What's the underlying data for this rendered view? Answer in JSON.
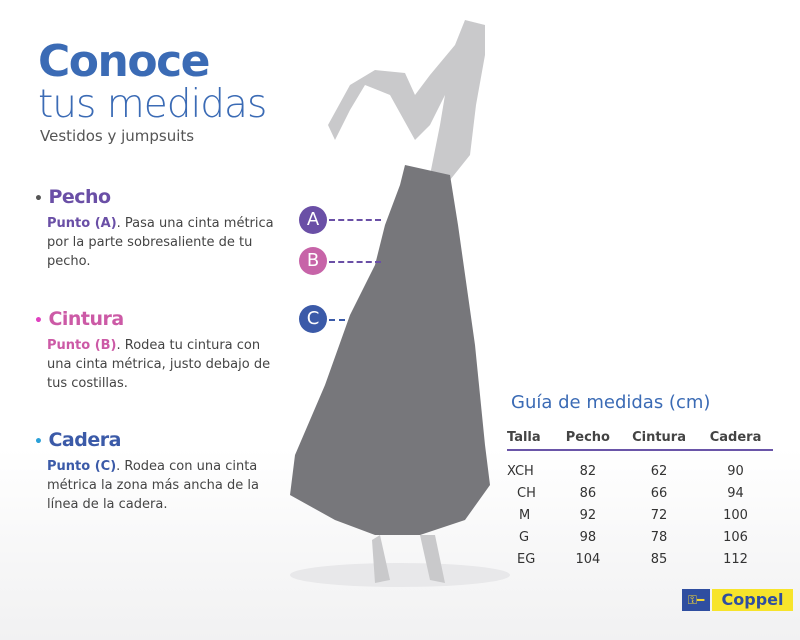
{
  "header": {
    "title_bold": "Conoce",
    "title_light": "tus medidas",
    "subtitle": "Vestidos y jumpsuits"
  },
  "sections": [
    {
      "heading": "Pecho",
      "point": "Punto (A)",
      "text": ". Pasa una cinta métrica por la parte sobresaliente de tu pecho.",
      "color": "#6a4fa6",
      "bullet_color": "#555"
    },
    {
      "heading": "Cintura",
      "point": "Punto (B)",
      "text": ". Rodea tu cintura con una cinta métrica, justo debajo de tus costillas.",
      "color": "#cc5aa6",
      "bullet_color": "#e040c0"
    },
    {
      "heading": "Cadera",
      "point": "Punto (C)",
      "text": ". Rodea con una cinta métrica la zona más ancha de la línea de la cadera.",
      "color": "#3b5aa8",
      "bullet_color": "#2aa0d8"
    }
  ],
  "markers": [
    {
      "label": "A",
      "color": "#6a4fa6"
    },
    {
      "label": "B",
      "color": "#c764a8"
    },
    {
      "label": "C",
      "color": "#3b5aa8"
    }
  ],
  "guide": {
    "title": "Guía de medidas (cm)",
    "columns": [
      "Talla",
      "Pecho",
      "Cintura",
      "Cadera"
    ],
    "rows": [
      [
        "XCH",
        "82",
        "62",
        "90"
      ],
      [
        "CH",
        "86",
        "66",
        "94"
      ],
      [
        "M",
        "92",
        "72",
        "100"
      ],
      [
        "G",
        "98",
        "78",
        "106"
      ],
      [
        "EG",
        "104",
        "85",
        "112"
      ]
    ]
  },
  "brand": {
    "name": "Coppel",
    "icon": "key-icon"
  }
}
